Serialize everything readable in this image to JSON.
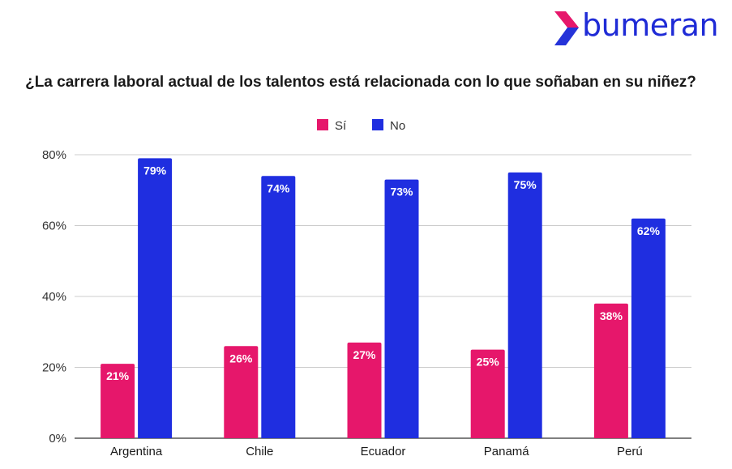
{
  "brand": {
    "name": "bumeran",
    "logo_colors": [
      "#e6176b",
      "#2533d9"
    ],
    "text_color": "#1f2bd6"
  },
  "chart_data": {
    "type": "bar",
    "title": "¿La carrera laboral actual de los talentos está relacionada con lo que soñaban en su niñez?",
    "categories": [
      "Argentina",
      "Chile",
      "Ecuador",
      "Panamá",
      "Perú"
    ],
    "series": [
      {
        "name": "Sí",
        "color": "#e6176b",
        "values": [
          21,
          26,
          27,
          25,
          38
        ],
        "labels": [
          "21%",
          "26%",
          "27%",
          "25%",
          "38%"
        ]
      },
      {
        "name": "No",
        "color": "#1f2ee0",
        "values": [
          79,
          74,
          73,
          75,
          62
        ],
        "labels": [
          "79%",
          "74%",
          "73%",
          "75%",
          "62%"
        ]
      }
    ],
    "ylim": [
      0,
      80
    ],
    "yticks": [
      0,
      20,
      40,
      60,
      80
    ],
    "ytick_labels": [
      "0%",
      "20%",
      "40%",
      "60%",
      "80%"
    ],
    "grid": true,
    "legend": "top-center",
    "xlabel": "",
    "ylabel": ""
  }
}
